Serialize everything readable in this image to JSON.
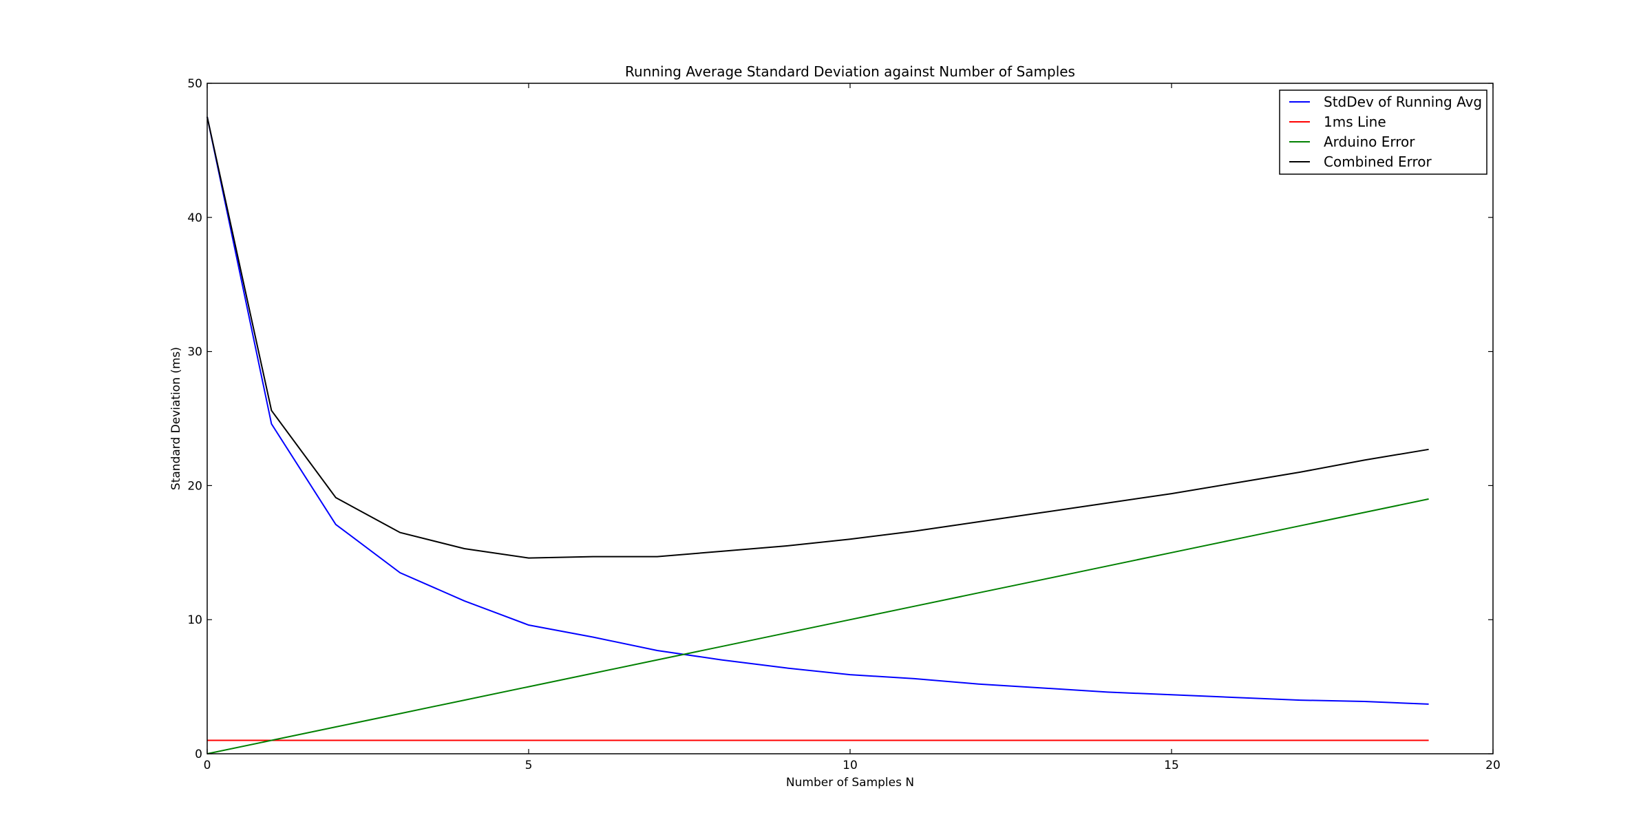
{
  "chart_data": {
    "type": "line",
    "title": "Running Average Standard Deviation against Number of Samples",
    "xlabel": "Number of Samples N",
    "ylabel": "Standard Deviation (ms)",
    "xlim": [
      0,
      20
    ],
    "ylim": [
      0,
      50
    ],
    "xticks": [
      0,
      5,
      10,
      15,
      20
    ],
    "yticks": [
      0,
      10,
      20,
      30,
      40,
      50
    ],
    "grid": false,
    "legend_position": "top-right",
    "series": [
      {
        "name": "StdDev of Running Avg",
        "color": "#0000ff",
        "x": [
          0,
          1,
          2,
          3,
          4,
          5,
          6,
          7,
          8,
          9,
          10,
          11,
          12,
          13,
          14,
          15,
          16,
          17,
          18,
          19
        ],
        "y": [
          47.5,
          24.6,
          17.1,
          13.5,
          11.4,
          9.6,
          8.7,
          7.7,
          7.0,
          6.4,
          5.9,
          5.6,
          5.2,
          4.9,
          4.6,
          4.4,
          4.2,
          4.0,
          3.9,
          3.7
        ]
      },
      {
        "name": "1ms Line",
        "color": "#ff0000",
        "x": [
          0,
          19
        ],
        "y": [
          1,
          1
        ]
      },
      {
        "name": "Arduino Error",
        "color": "#008000",
        "x": [
          0,
          1,
          2,
          3,
          4,
          5,
          6,
          7,
          8,
          9,
          10,
          11,
          12,
          13,
          14,
          15,
          16,
          17,
          18,
          19
        ],
        "y": [
          0,
          1,
          2,
          3,
          4,
          5,
          6,
          7,
          8,
          9,
          10,
          11,
          12,
          13,
          14,
          15,
          16,
          17,
          18,
          19
        ]
      },
      {
        "name": "Combined Error",
        "color": "#000000",
        "x": [
          0,
          1,
          2,
          3,
          4,
          5,
          6,
          7,
          8,
          9,
          10,
          11,
          12,
          13,
          14,
          15,
          16,
          17,
          18,
          19
        ],
        "y": [
          47.5,
          25.6,
          19.1,
          16.5,
          15.3,
          14.6,
          14.7,
          14.7,
          15.1,
          15.5,
          16.0,
          16.6,
          17.3,
          18.0,
          18.7,
          19.4,
          20.2,
          21.0,
          21.9,
          22.7
        ]
      }
    ]
  }
}
